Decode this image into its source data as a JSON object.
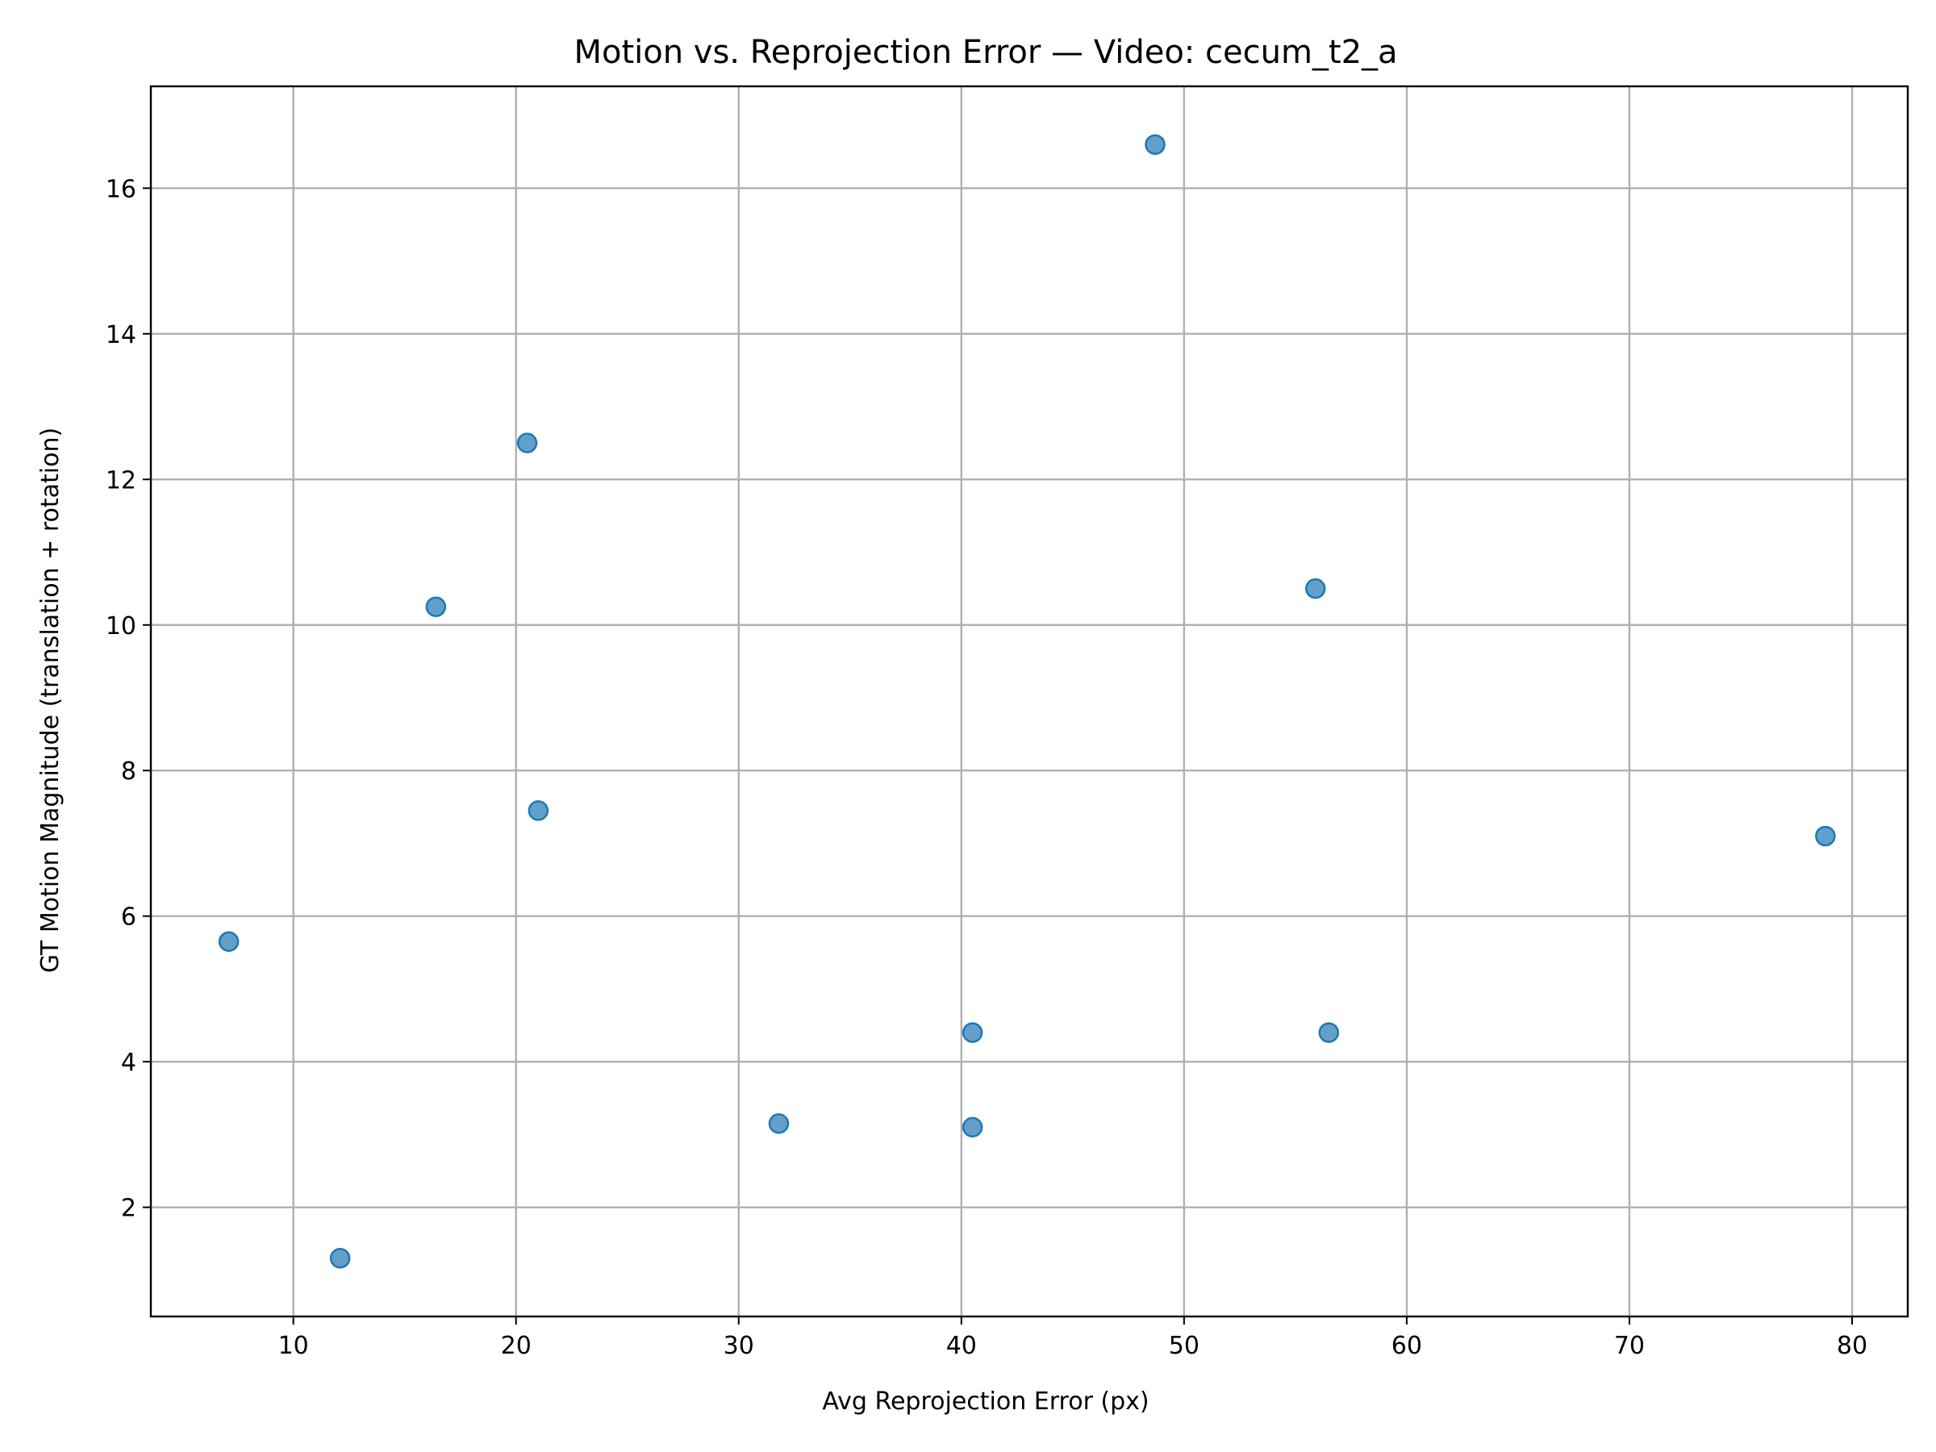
{
  "chart_data": {
    "type": "scatter",
    "title": "Motion vs. Reprojection Error — Video: cecum_t2_a",
    "xlabel": "Avg Reprojection Error (px)",
    "ylabel": "GT Motion Magnitude (translation + rotation)",
    "xlim": [
      3.6,
      82.5
    ],
    "ylim": [
      0.5,
      17.4
    ],
    "xticks": [
      10,
      20,
      30,
      40,
      50,
      60,
      70,
      80
    ],
    "yticks": [
      2,
      4,
      6,
      8,
      10,
      12,
      14,
      16
    ],
    "grid": true,
    "marker_color": "#1f77b4",
    "points": [
      {
        "x": 7.1,
        "y": 5.65
      },
      {
        "x": 12.1,
        "y": 1.3
      },
      {
        "x": 16.4,
        "y": 10.25
      },
      {
        "x": 20.5,
        "y": 12.5
      },
      {
        "x": 21.0,
        "y": 7.45
      },
      {
        "x": 31.8,
        "y": 3.15
      },
      {
        "x": 40.5,
        "y": 4.4
      },
      {
        "x": 40.5,
        "y": 3.1
      },
      {
        "x": 48.7,
        "y": 16.6
      },
      {
        "x": 55.9,
        "y": 10.5
      },
      {
        "x": 56.5,
        "y": 4.4
      },
      {
        "x": 78.8,
        "y": 7.1
      }
    ]
  }
}
